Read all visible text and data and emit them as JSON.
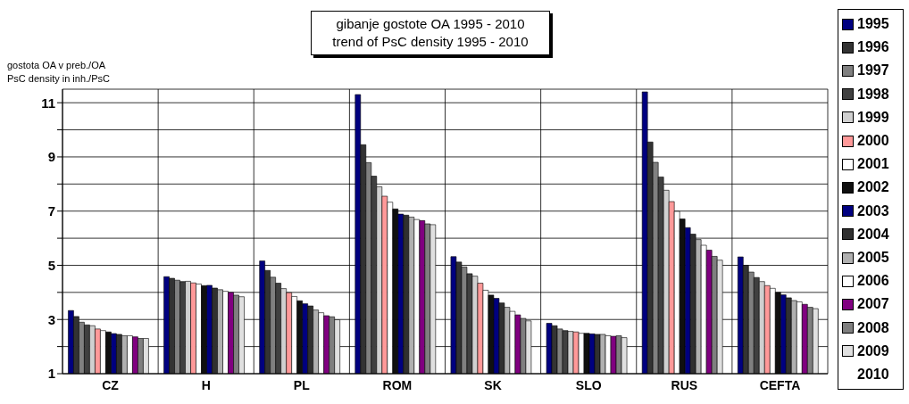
{
  "chart_data": {
    "type": "bar",
    "title": "gibanje gostote OA 1995 - 2010",
    "subtitle": "trend of PsC density 1995 - 2010",
    "ylabel": "gostota OA v preb./OA\nPsC density in inh./PsC",
    "categories": [
      "CZ",
      "H",
      "PL",
      "ROM",
      "SK",
      "SLO",
      "RUS",
      "CEFTA"
    ],
    "ylim": [
      1,
      11.5
    ],
    "yticks": [
      1,
      {
        "value": 2,
        "label": null
      },
      3,
      {
        "value": 4,
        "label": null
      },
      5,
      {
        "value": 6,
        "label": null
      },
      7,
      {
        "value": 8,
        "label": null
      },
      9,
      {
        "value": 10,
        "label": null
      },
      11
    ],
    "grid": true,
    "legend": "right",
    "annotations": [
      "2010"
    ],
    "series": [
      {
        "name": "1995",
        "color": "#000080",
        "values": [
          3.33,
          4.58,
          5.16,
          11.3,
          5.32,
          2.86,
          11.4,
          5.31
        ]
      },
      {
        "name": "1996",
        "color": "#333333",
        "values": [
          3.11,
          4.52,
          4.81,
          9.45,
          5.12,
          2.77,
          9.55,
          5.0
        ]
      },
      {
        "name": "1997",
        "color": "#808080",
        "values": [
          2.9,
          4.45,
          4.56,
          8.79,
          4.94,
          2.65,
          8.8,
          4.75
        ]
      },
      {
        "name": "1998",
        "color": "#404040",
        "values": [
          2.8,
          4.4,
          4.34,
          8.29,
          4.69,
          2.59,
          8.26,
          4.55
        ]
      },
      {
        "name": "1999",
        "color": "#d0d0d0",
        "values": [
          2.77,
          4.41,
          4.14,
          7.9,
          4.6,
          2.56,
          7.77,
          4.4
        ]
      },
      {
        "name": "2000",
        "color": "#ff9999",
        "values": [
          2.65,
          4.35,
          3.99,
          7.55,
          4.34,
          2.54,
          7.35,
          4.25
        ]
      },
      {
        "name": "2001",
        "color": "#ffffff",
        "values": [
          2.59,
          4.31,
          3.85,
          7.33,
          4.08,
          2.49,
          6.99,
          4.15
        ]
      },
      {
        "name": "2002",
        "color": "#101010",
        "values": [
          2.54,
          4.25,
          3.69,
          7.08,
          3.9,
          2.49,
          6.71,
          4.0
        ]
      },
      {
        "name": "2003",
        "color": "#000080",
        "values": [
          2.48,
          4.26,
          3.58,
          6.89,
          3.78,
          2.47,
          6.39,
          3.91
        ]
      },
      {
        "name": "2004",
        "color": "#303030",
        "values": [
          2.45,
          4.16,
          3.5,
          6.85,
          3.61,
          2.45,
          6.15,
          3.8
        ]
      },
      {
        "name": "2005",
        "color": "#b0b0b0",
        "values": [
          2.4,
          4.1,
          3.35,
          6.78,
          3.45,
          2.45,
          5.95,
          3.7
        ]
      },
      {
        "name": "2006",
        "color": "#fefefe",
        "values": [
          2.4,
          4.04,
          3.25,
          6.69,
          3.3,
          2.4,
          5.74,
          3.65
        ]
      },
      {
        "name": "2007",
        "color": "#800080",
        "values": [
          2.36,
          4.0,
          3.14,
          6.65,
          3.17,
          2.38,
          5.56,
          3.56
        ]
      },
      {
        "name": "2008",
        "color": "#7f7f7f",
        "values": [
          2.3,
          3.9,
          3.1,
          6.53,
          3.04,
          2.4,
          5.33,
          3.45
        ]
      },
      {
        "name": "2009",
        "color": "#e0e0e0",
        "values": [
          2.3,
          3.84,
          2.99,
          6.5,
          2.95,
          2.33,
          5.19,
          3.4
        ]
      }
    ]
  }
}
